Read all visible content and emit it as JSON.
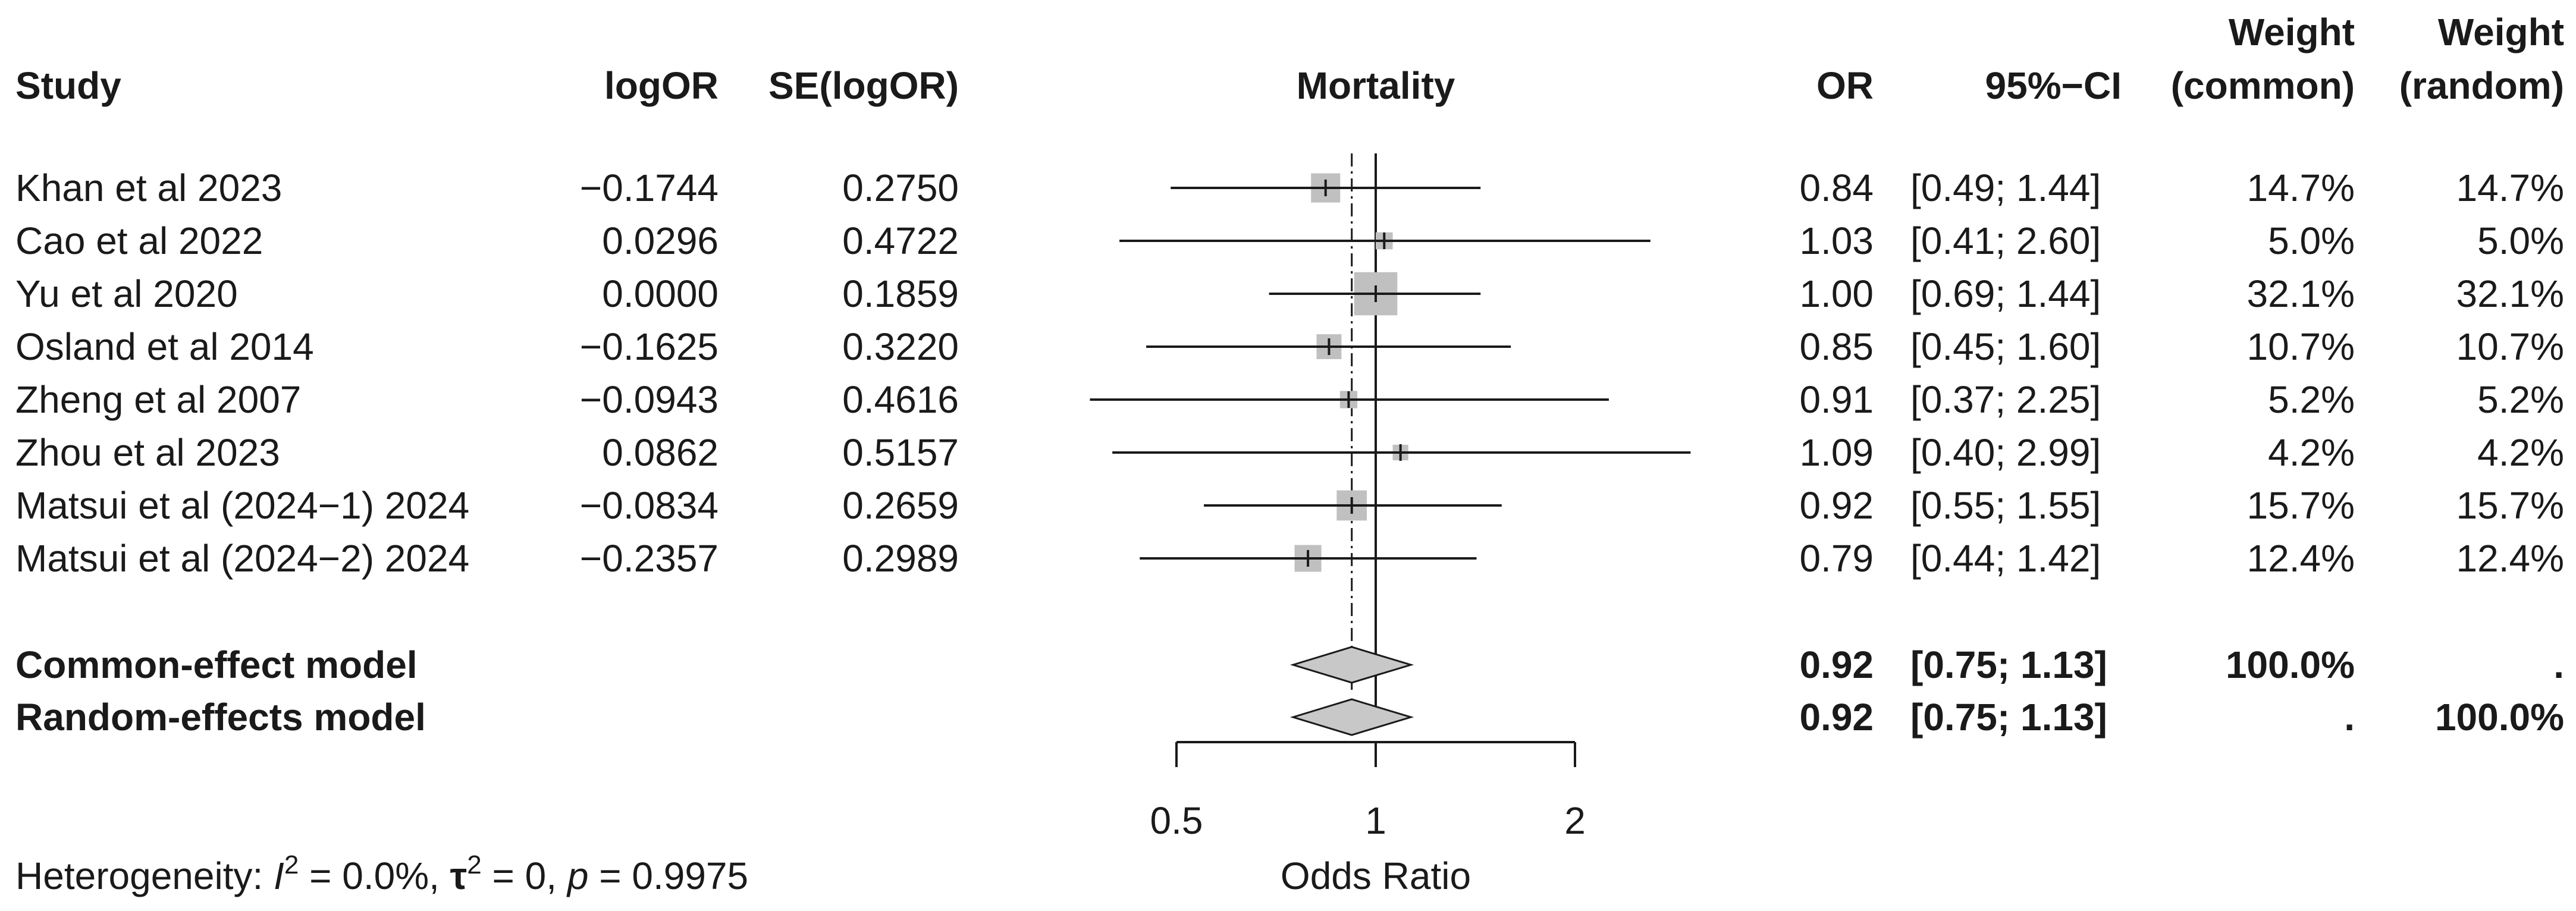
{
  "chart_data": {
    "type": "forest",
    "title": "Mortality",
    "xlabel": "Odds Ratio",
    "x_scale": "log",
    "x_ticks": [
      0.5,
      1,
      2
    ],
    "x_tick_labels": [
      "0.5",
      "1",
      "2"
    ],
    "xlim": [
      0.5,
      2
    ],
    "reference_line": 1,
    "pooled_line": 0.92,
    "columns": {
      "study": "Study",
      "logor": "logOR",
      "se": "SE(logOR)",
      "or": "OR",
      "ci": "95%−CI",
      "w_common_1": "Weight",
      "w_common_2": "(common)",
      "w_random_1": "Weight",
      "w_random_2": "(random)"
    },
    "studies": [
      {
        "study": "Khan et al 2023",
        "logor": "−0.1744",
        "se": "0.2750",
        "or": 0.84,
        "or_label": "0.84",
        "lower": 0.49,
        "upper": 1.44,
        "ci_label": "[0.49; 1.44]",
        "w_common": "14.7%",
        "w_random": "14.7%",
        "weight": 14.7
      },
      {
        "study": "Cao et al 2022",
        "logor": "0.0296",
        "se": "0.4722",
        "or": 1.03,
        "or_label": "1.03",
        "lower": 0.41,
        "upper": 2.6,
        "ci_label": "[0.41; 2.60]",
        "w_common": "5.0%",
        "w_random": "5.0%",
        "weight": 5.0
      },
      {
        "study": "Yu et al 2020",
        "logor": "0.0000",
        "se": "0.1859",
        "or": 1.0,
        "or_label": "1.00",
        "lower": 0.69,
        "upper": 1.44,
        "ci_label": "[0.69; 1.44]",
        "w_common": "32.1%",
        "w_random": "32.1%",
        "weight": 32.1
      },
      {
        "study": "Osland et al 2014",
        "logor": "−0.1625",
        "se": "0.3220",
        "or": 0.85,
        "or_label": "0.85",
        "lower": 0.45,
        "upper": 1.6,
        "ci_label": "[0.45; 1.60]",
        "w_common": "10.7%",
        "w_random": "10.7%",
        "weight": 10.7
      },
      {
        "study": "Zheng et al 2007",
        "logor": "−0.0943",
        "se": "0.4616",
        "or": 0.91,
        "or_label": "0.91",
        "lower": 0.37,
        "upper": 2.25,
        "ci_label": "[0.37; 2.25]",
        "w_common": "5.2%",
        "w_random": "5.2%",
        "weight": 5.2
      },
      {
        "study": "Zhou et al 2023",
        "logor": "0.0862",
        "se": "0.5157",
        "or": 1.09,
        "or_label": "1.09",
        "lower": 0.4,
        "upper": 2.99,
        "ci_label": "[0.40; 2.99]",
        "w_common": "4.2%",
        "w_random": "4.2%",
        "weight": 4.2
      },
      {
        "study": "Matsui et al (2024−1) 2024",
        "logor": "−0.0834",
        "se": "0.2659",
        "or": 0.92,
        "or_label": "0.92",
        "lower": 0.55,
        "upper": 1.55,
        "ci_label": "[0.55; 1.55]",
        "w_common": "15.7%",
        "w_random": "15.7%",
        "weight": 15.7
      },
      {
        "study": "Matsui et al (2024−2) 2024",
        "logor": "−0.2357",
        "se": "0.2989",
        "or": 0.79,
        "or_label": "0.79",
        "lower": 0.44,
        "upper": 1.42,
        "ci_label": "[0.44; 1.42]",
        "w_common": "12.4%",
        "w_random": "12.4%",
        "weight": 12.4
      }
    ],
    "models": [
      {
        "label": "Common-effect model",
        "or": 0.92,
        "or_label": "0.92",
        "lower": 0.75,
        "upper": 1.13,
        "ci_label": "[0.75; 1.13]",
        "w_common": "100.0%",
        "w_random": "."
      },
      {
        "label": "Random-effects model",
        "or": 0.92,
        "or_label": "0.92",
        "lower": 0.75,
        "upper": 1.13,
        "ci_label": "[0.75; 1.13]",
        "w_common": ".",
        "w_random": "100.0%"
      }
    ],
    "heterogeneity": {
      "prefix": "Heterogeneity: ",
      "i2_symbol": "I",
      "i2_value": " = 0.0%, ",
      "tau2_symbol": "τ",
      "tau2_value": " = 0, ",
      "p_symbol": "p",
      "p_value": " = 0.9975"
    },
    "colors": {
      "box": "#c0c0c0",
      "diamond": "#c8c8c8",
      "line": "#1a1a1a"
    }
  }
}
